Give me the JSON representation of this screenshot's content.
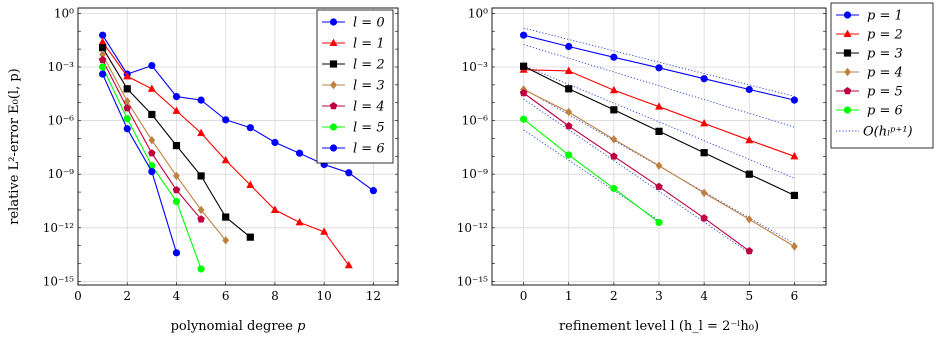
{
  "chart_data": [
    {
      "type": "line",
      "id": "left",
      "title": "",
      "xlabel": "polynomial degree p",
      "ylabel": "relative L²-error E₀(l, p)",
      "xlim": [
        0,
        13
      ],
      "ylim_log10": [
        -15.2,
        0.3
      ],
      "y_log_scale": true,
      "grid": true,
      "x_ticks": [
        "0",
        "2",
        "4",
        "6",
        "8",
        "10",
        "12"
      ],
      "y_ticks": [
        "10⁰",
        "10⁻³",
        "10⁻⁶",
        "10⁻⁹",
        "10⁻¹²",
        "10⁻¹⁵"
      ],
      "legend_position": "top-right",
      "series": [
        {
          "name": "l = 0",
          "color": "#0000ff",
          "marker": "circle",
          "x": [
            1,
            2,
            3,
            4,
            5,
            6,
            7,
            8,
            9,
            10,
            11,
            12
          ],
          "y": [
            0.06,
            0.0004,
            0.0012,
            2.2e-05,
            1.4e-05,
            1.1e-06,
            4e-07,
            6e-08,
            1.5e-08,
            3.5e-09,
            1.2e-09,
            1.2e-10
          ]
        },
        {
          "name": "l = 1",
          "color": "#ff0000",
          "marker": "triangle",
          "x": [
            1,
            2,
            3,
            4,
            5,
            6,
            7,
            8,
            9,
            10,
            11
          ],
          "y": [
            0.025,
            0.0003,
            6e-05,
            3.5e-06,
            2e-07,
            6e-09,
            2.5e-10,
            1e-11,
            2e-12,
            6e-13,
            8e-15
          ]
        },
        {
          "name": "l = 2",
          "color": "#000000",
          "marker": "square",
          "x": [
            1,
            2,
            3,
            4,
            5,
            6,
            7
          ],
          "y": [
            0.012,
            6e-05,
            2.2e-06,
            4e-08,
            8e-10,
            4e-12,
            3e-13
          ]
        },
        {
          "name": "l = 3",
          "color": "#bf8040",
          "marker": "diamond",
          "x": [
            1,
            2,
            3,
            4,
            5,
            6
          ],
          "y": [
            0.005,
            1.2e-05,
            8e-08,
            8e-10,
            1e-11,
            2e-13
          ]
        },
        {
          "name": "l = 4",
          "color": "#bf0040",
          "marker": "pentagon",
          "x": [
            1,
            2,
            3,
            4,
            5
          ],
          "y": [
            0.0025,
            5e-06,
            1.5e-08,
            1.3e-10,
            3e-12
          ]
        },
        {
          "name": "l = 5",
          "color": "#00ff00",
          "marker": "circle",
          "x": [
            1,
            2,
            3,
            4,
            5
          ],
          "y": [
            0.001,
            1.3e-06,
            3e-09,
            3e-11,
            5e-15
          ]
        },
        {
          "name": "l = 6",
          "color": "#0000ff",
          "marker": "circle",
          "x": [
            1,
            2,
            3,
            4
          ],
          "y": [
            0.0004,
            3.5e-07,
            1.4e-09,
            4e-14
          ]
        }
      ]
    },
    {
      "type": "line",
      "id": "right",
      "title": "",
      "xlabel": "refinement level l (h_l = 2^{-l} h_0)",
      "ylabel": "",
      "xlim": [
        -0.7,
        6.7
      ],
      "ylim_log10": [
        -15.2,
        0.3
      ],
      "y_log_scale": true,
      "grid": true,
      "x_ticks": [
        "0",
        "1",
        "2",
        "3",
        "4",
        "5",
        "6"
      ],
      "y_ticks": [
        "10⁰",
        "10⁻³",
        "10⁻⁶",
        "10⁻⁹",
        "10⁻¹²",
        "10⁻¹⁵"
      ],
      "legend_position": "outside-right",
      "series": [
        {
          "name": "p = 1",
          "color": "#0000ff",
          "marker": "circle",
          "x": [
            0,
            1,
            2,
            3,
            4,
            5,
            6
          ],
          "y": [
            0.06,
            0.014,
            0.0035,
            0.0009,
            0.00022,
            5.5e-05,
            1.4e-05
          ]
        },
        {
          "name": "p = 2",
          "color": "#ff0000",
          "marker": "triangle",
          "x": [
            0,
            1,
            2,
            3,
            4,
            5,
            6
          ],
          "y": [
            0.0007,
            0.0006,
            5e-05,
            6e-06,
            7e-07,
            8e-08,
            1e-08
          ]
        },
        {
          "name": "p = 3",
          "color": "#000000",
          "marker": "square",
          "x": [
            0,
            1,
            2,
            3,
            4,
            5,
            6
          ],
          "y": [
            0.0011,
            6e-05,
            4e-06,
            2.5e-07,
            1.6e-08,
            1e-09,
            6.5e-11
          ]
        },
        {
          "name": "p = 4",
          "color": "#bf8040",
          "marker": "diamond",
          "x": [
            0,
            1,
            2,
            3,
            4,
            5,
            6
          ],
          "y": [
            5.5e-05,
            3e-06,
            9e-08,
            3e-09,
            9e-11,
            3e-12,
            9e-14
          ]
        },
        {
          "name": "p = 5",
          "color": "#bf0040",
          "marker": "pentagon",
          "x": [
            0,
            1,
            2,
            3,
            4,
            5
          ],
          "y": [
            3.5e-05,
            5e-07,
            1e-08,
            2e-10,
            3.5e-12,
            5e-14
          ]
        },
        {
          "name": "p = 6",
          "color": "#00ff00",
          "marker": "circle",
          "x": [
            0,
            1,
            2,
            3
          ],
          "y": [
            1.2e-06,
            1.2e-08,
            1.6e-10,
            2e-12
          ]
        }
      ],
      "reference_lines": {
        "name": "O(h_l^{p+1})",
        "color": "#1f3fd0",
        "style": "dotted",
        "lines": [
          {
            "x": [
              0,
              6
            ],
            "y": [
              0.15,
              2.3e-05
            ]
          },
          {
            "x": [
              0,
              6
            ],
            "y": [
              0.018,
              4.3e-07
            ]
          },
          {
            "x": [
              0,
              6
            ],
            "y": [
              0.0012,
              6e-10
            ]
          },
          {
            "x": [
              0,
              6
            ],
            "y": [
              6e-05,
              1.3e-13
            ]
          },
          {
            "x": [
              0,
              5
            ],
            "y": [
              1.6e-05,
              4e-14
            ]
          },
          {
            "x": [
              0,
              3
            ],
            "y": [
              3e-07,
              2.5e-12
            ]
          }
        ]
      }
    }
  ]
}
